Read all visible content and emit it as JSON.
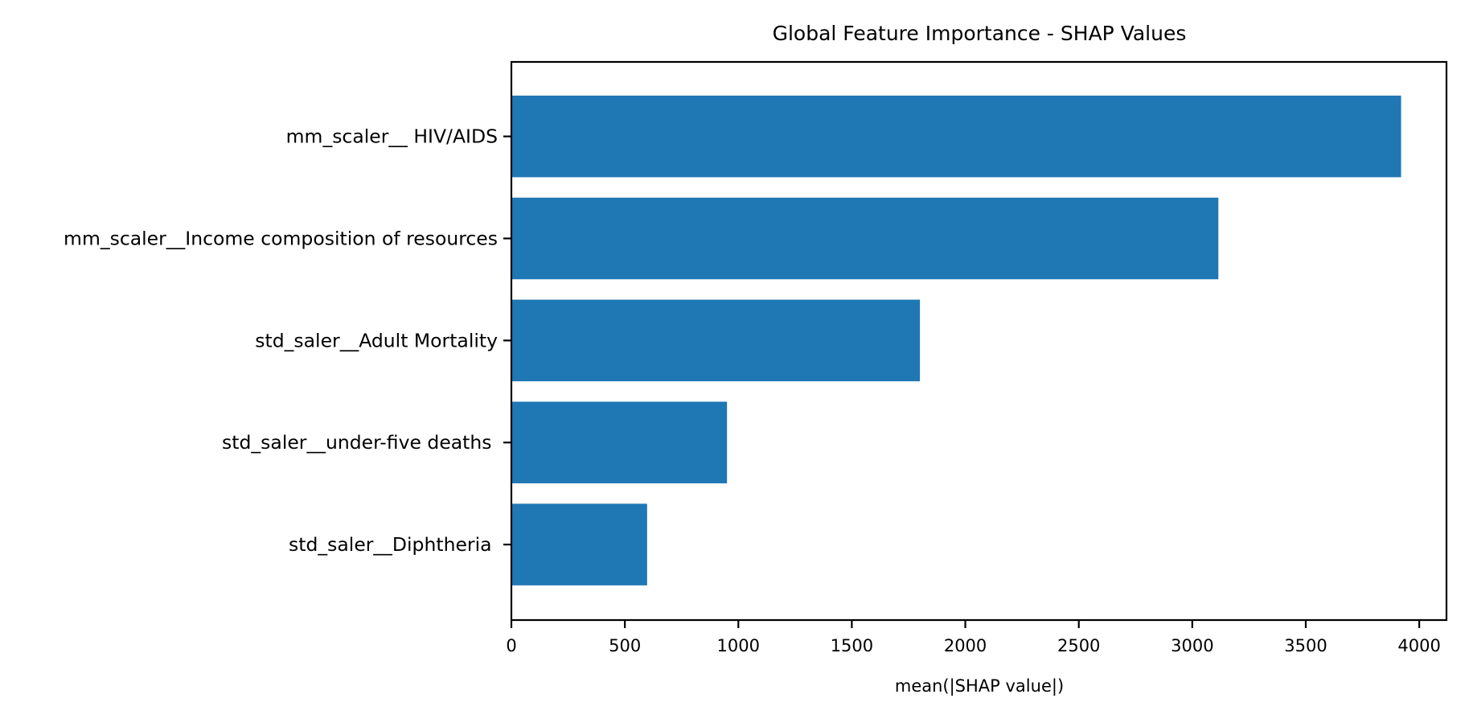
{
  "chart_data": {
    "type": "bar",
    "orientation": "horizontal",
    "title": "Global Feature Importance - SHAP Values",
    "xlabel": "mean(|SHAP value|)",
    "ylabel": "",
    "categories": [
      "mm_scaler__ HIV/AIDS",
      "mm_scaler__Income composition of resources",
      "std_saler__Adult Mortality",
      "std_saler__under-five deaths ",
      "std_saler__Diphtheria "
    ],
    "values": [
      3920,
      3115,
      1800,
      950,
      598
    ],
    "xlim": [
      0,
      4120
    ],
    "xticks": [
      0,
      500,
      1000,
      1500,
      2000,
      2500,
      3000,
      3500,
      4000
    ],
    "xtick_labels": [
      "0",
      "500",
      "1000",
      "1500",
      "2000",
      "2500",
      "3000",
      "3500",
      "4000"
    ],
    "bar_color": "#1f77b4",
    "grid": false,
    "legend": false
  }
}
